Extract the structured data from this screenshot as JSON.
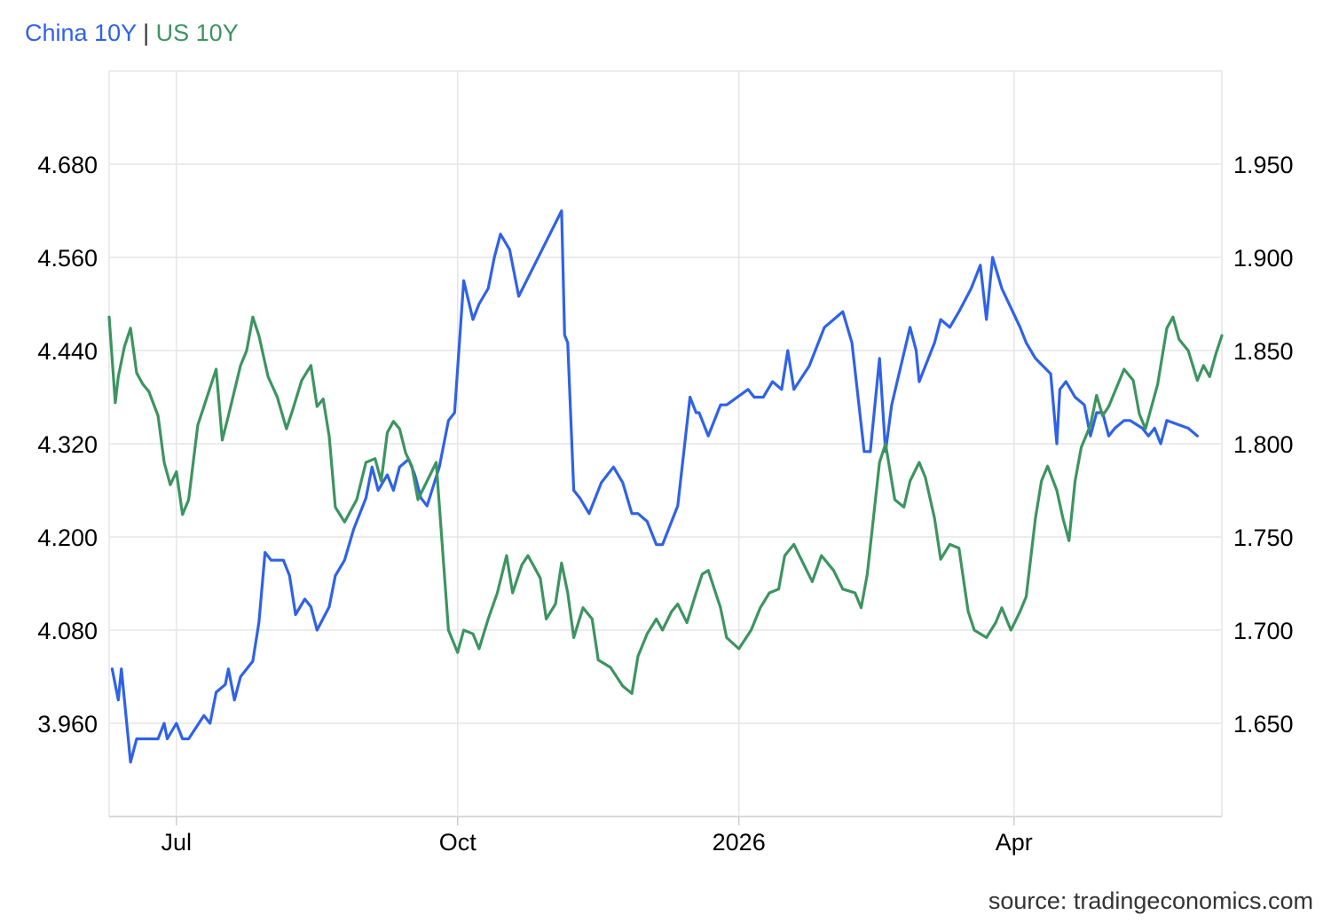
{
  "legend": {
    "separator": "|"
  },
  "source": "source: tradingeconomics.com",
  "colors": {
    "china": "#2f62e8",
    "us": "#3d9460",
    "grid": "#e6e6e6"
  },
  "chart_data": {
    "type": "line",
    "title": "",
    "x_ticks": [
      "Jul",
      "Oct",
      "2026",
      "Apr"
    ],
    "x_tick_dates": [
      "2025-07-01",
      "2025-10-01",
      "2026-01-01",
      "2026-04-01"
    ],
    "x_range": [
      "2025-06-09",
      "2026-06-08"
    ],
    "left_axis": {
      "series": "China 10Y",
      "ticks": [
        "4.680",
        "4.560",
        "4.440",
        "4.320",
        "4.200",
        "4.080",
        "3.960"
      ],
      "range": [
        3.84,
        4.8
      ]
    },
    "right_axis": {
      "series": "US 10Y",
      "ticks": [
        "1.950",
        "1.900",
        "1.850",
        "1.800",
        "1.750",
        "1.700",
        "1.650"
      ],
      "range": [
        1.6,
        2.0
      ]
    },
    "grid": true,
    "legend_position": "top-left",
    "series": [
      {
        "name": "China 10Y",
        "color": "#2f62e8",
        "axis": "left",
        "points": [
          [
            "2025-06-10",
            4.03
          ],
          [
            "2025-06-12",
            3.99
          ],
          [
            "2025-06-13",
            4.03
          ],
          [
            "2025-06-16",
            3.91
          ],
          [
            "2025-06-18",
            3.94
          ],
          [
            "2025-06-20",
            3.94
          ],
          [
            "2025-06-25",
            3.94
          ],
          [
            "2025-06-27",
            3.96
          ],
          [
            "2025-06-28",
            3.94
          ],
          [
            "2025-07-01",
            3.96
          ],
          [
            "2025-07-03",
            3.94
          ],
          [
            "2025-07-05",
            3.94
          ],
          [
            "2025-07-10",
            3.97
          ],
          [
            "2025-07-12",
            3.96
          ],
          [
            "2025-07-14",
            4.0
          ],
          [
            "2025-07-17",
            4.01
          ],
          [
            "2025-07-18",
            4.03
          ],
          [
            "2025-07-20",
            3.99
          ],
          [
            "2025-07-22",
            4.02
          ],
          [
            "2025-07-26",
            4.04
          ],
          [
            "2025-07-28",
            4.09
          ],
          [
            "2025-07-30",
            4.18
          ],
          [
            "2025-08-01",
            4.17
          ],
          [
            "2025-08-05",
            4.17
          ],
          [
            "2025-08-07",
            4.15
          ],
          [
            "2025-08-09",
            4.1
          ],
          [
            "2025-08-12",
            4.12
          ],
          [
            "2025-08-14",
            4.11
          ],
          [
            "2025-08-16",
            4.08
          ],
          [
            "2025-08-20",
            4.11
          ],
          [
            "2025-08-22",
            4.15
          ],
          [
            "2025-08-25",
            4.17
          ],
          [
            "2025-08-28",
            4.21
          ],
          [
            "2025-09-01",
            4.25
          ],
          [
            "2025-09-03",
            4.29
          ],
          [
            "2025-09-05",
            4.26
          ],
          [
            "2025-09-08",
            4.28
          ],
          [
            "2025-09-10",
            4.26
          ],
          [
            "2025-09-12",
            4.29
          ],
          [
            "2025-09-15",
            4.3
          ],
          [
            "2025-09-17",
            4.28
          ],
          [
            "2025-09-19",
            4.25
          ],
          [
            "2025-09-21",
            4.24
          ],
          [
            "2025-09-25",
            4.29
          ],
          [
            "2025-09-28",
            4.35
          ],
          [
            "2025-09-30",
            4.36
          ],
          [
            "2025-10-03",
            4.53
          ],
          [
            "2025-10-06",
            4.48
          ],
          [
            "2025-10-08",
            4.5
          ],
          [
            "2025-10-11",
            4.52
          ],
          [
            "2025-10-13",
            4.56
          ],
          [
            "2025-10-15",
            4.59
          ],
          [
            "2025-10-18",
            4.57
          ],
          [
            "2025-10-21",
            4.51
          ],
          [
            "2025-11-04",
            4.62
          ],
          [
            "2025-11-05",
            4.46
          ],
          [
            "2025-11-06",
            4.45
          ],
          [
            "2025-11-08",
            4.26
          ],
          [
            "2025-11-10",
            4.25
          ],
          [
            "2025-11-13",
            4.23
          ],
          [
            "2025-11-17",
            4.27
          ],
          [
            "2025-11-19",
            4.28
          ],
          [
            "2025-11-21",
            4.29
          ],
          [
            "2025-11-24",
            4.27
          ],
          [
            "2025-11-27",
            4.23
          ],
          [
            "2025-11-29",
            4.23
          ],
          [
            "2025-12-02",
            4.22
          ],
          [
            "2025-12-05",
            4.19
          ],
          [
            "2025-12-07",
            4.19
          ],
          [
            "2025-12-10",
            4.22
          ],
          [
            "2025-12-12",
            4.24
          ],
          [
            "2025-12-16",
            4.38
          ],
          [
            "2025-12-18",
            4.36
          ],
          [
            "2025-12-19",
            4.36
          ],
          [
            "2025-12-22",
            4.33
          ],
          [
            "2025-12-26",
            4.37
          ],
          [
            "2025-12-28",
            4.37
          ],
          [
            "2026-01-04",
            4.39
          ],
          [
            "2026-01-06",
            4.38
          ],
          [
            "2026-01-09",
            4.38
          ],
          [
            "2026-01-12",
            4.4
          ],
          [
            "2026-01-15",
            4.39
          ],
          [
            "2026-01-17",
            4.44
          ],
          [
            "2026-01-19",
            4.39
          ],
          [
            "2026-01-24",
            4.42
          ],
          [
            "2026-01-29",
            4.47
          ],
          [
            "2026-02-01",
            4.48
          ],
          [
            "2026-02-04",
            4.49
          ],
          [
            "2026-02-07",
            4.45
          ],
          [
            "2026-02-11",
            4.31
          ],
          [
            "2026-02-13",
            4.31
          ],
          [
            "2026-02-16",
            4.43
          ],
          [
            "2026-02-18",
            4.31
          ],
          [
            "2026-02-20",
            4.37
          ],
          [
            "2026-02-26",
            4.47
          ],
          [
            "2026-02-28",
            4.44
          ],
          [
            "2026-03-01",
            4.4
          ],
          [
            "2026-03-06",
            4.45
          ],
          [
            "2026-03-08",
            4.48
          ],
          [
            "2026-03-11",
            4.47
          ],
          [
            "2026-03-14",
            4.49
          ],
          [
            "2026-03-18",
            4.52
          ],
          [
            "2026-03-21",
            4.55
          ],
          [
            "2026-03-23",
            4.48
          ],
          [
            "2026-03-25",
            4.56
          ],
          [
            "2026-03-28",
            4.52
          ],
          [
            "2026-04-03",
            4.47
          ],
          [
            "2026-04-05",
            4.45
          ],
          [
            "2026-04-08",
            4.43
          ],
          [
            "2026-04-13",
            4.41
          ],
          [
            "2026-04-15",
            4.32
          ],
          [
            "2026-04-16",
            4.39
          ],
          [
            "2026-04-18",
            4.4
          ],
          [
            "2026-04-21",
            4.38
          ],
          [
            "2026-04-24",
            4.37
          ],
          [
            "2026-04-26",
            4.33
          ],
          [
            "2026-04-28",
            4.36
          ],
          [
            "2026-04-30",
            4.36
          ],
          [
            "2026-05-02",
            4.33
          ],
          [
            "2026-05-04",
            4.34
          ],
          [
            "2026-05-07",
            4.35
          ],
          [
            "2026-05-09",
            4.35
          ],
          [
            "2026-05-13",
            4.34
          ],
          [
            "2026-05-15",
            4.33
          ],
          [
            "2026-05-17",
            4.34
          ],
          [
            "2026-05-19",
            4.32
          ],
          [
            "2026-05-21",
            4.35
          ],
          [
            "2026-05-28",
            4.34
          ],
          [
            "2026-05-31",
            4.33
          ]
        ]
      },
      {
        "name": "US 10Y",
        "color": "#3d9460",
        "axis": "right",
        "points": [
          [
            "2025-06-09",
            1.868
          ],
          [
            "2025-06-11",
            1.822
          ],
          [
            "2025-06-12",
            1.836
          ],
          [
            "2025-06-14",
            1.852
          ],
          [
            "2025-06-16",
            1.862
          ],
          [
            "2025-06-18",
            1.838
          ],
          [
            "2025-06-20",
            1.832
          ],
          [
            "2025-06-22",
            1.828
          ],
          [
            "2025-06-25",
            1.815
          ],
          [
            "2025-06-27",
            1.79
          ],
          [
            "2025-06-29",
            1.778
          ],
          [
            "2025-07-01",
            1.785
          ],
          [
            "2025-07-03",
            1.762
          ],
          [
            "2025-07-05",
            1.77
          ],
          [
            "2025-07-08",
            1.81
          ],
          [
            "2025-07-12",
            1.83
          ],
          [
            "2025-07-14",
            1.84
          ],
          [
            "2025-07-16",
            1.802
          ],
          [
            "2025-07-18",
            1.815
          ],
          [
            "2025-07-22",
            1.842
          ],
          [
            "2025-07-24",
            1.85
          ],
          [
            "2025-07-26",
            1.868
          ],
          [
            "2025-07-28",
            1.858
          ],
          [
            "2025-07-31",
            1.836
          ],
          [
            "2025-08-03",
            1.825
          ],
          [
            "2025-08-06",
            1.808
          ],
          [
            "2025-08-08",
            1.818
          ],
          [
            "2025-08-11",
            1.834
          ],
          [
            "2025-08-14",
            1.842
          ],
          [
            "2025-08-16",
            1.82
          ],
          [
            "2025-08-18",
            1.824
          ],
          [
            "2025-08-20",
            1.804
          ],
          [
            "2025-08-22",
            1.766
          ],
          [
            "2025-08-25",
            1.758
          ],
          [
            "2025-08-29",
            1.77
          ],
          [
            "2025-09-01",
            1.79
          ],
          [
            "2025-09-04",
            1.792
          ],
          [
            "2025-09-06",
            1.78
          ],
          [
            "2025-09-08",
            1.806
          ],
          [
            "2025-09-10",
            1.812
          ],
          [
            "2025-09-12",
            1.808
          ],
          [
            "2025-09-14",
            1.795
          ],
          [
            "2025-09-16",
            1.788
          ],
          [
            "2025-09-18",
            1.77
          ],
          [
            "2025-09-21",
            1.78
          ],
          [
            "2025-09-24",
            1.79
          ],
          [
            "2025-09-28",
            1.7
          ],
          [
            "2025-10-01",
            1.688
          ],
          [
            "2025-10-03",
            1.7
          ],
          [
            "2025-10-06",
            1.698
          ],
          [
            "2025-10-08",
            1.69
          ],
          [
            "2025-10-11",
            1.706
          ],
          [
            "2025-10-14",
            1.72
          ],
          [
            "2025-10-17",
            1.74
          ],
          [
            "2025-10-19",
            1.72
          ],
          [
            "2025-10-22",
            1.735
          ],
          [
            "2025-10-24",
            1.74
          ],
          [
            "2025-10-28",
            1.728
          ],
          [
            "2025-10-30",
            1.706
          ],
          [
            "2025-11-02",
            1.714
          ],
          [
            "2025-11-04",
            1.736
          ],
          [
            "2025-11-06",
            1.72
          ],
          [
            "2025-11-08",
            1.696
          ],
          [
            "2025-11-11",
            1.712
          ],
          [
            "2025-11-14",
            1.706
          ],
          [
            "2025-11-16",
            1.684
          ],
          [
            "2025-11-20",
            1.68
          ],
          [
            "2025-11-24",
            1.67
          ],
          [
            "2025-11-27",
            1.666
          ],
          [
            "2025-11-29",
            1.686
          ],
          [
            "2025-12-02",
            1.698
          ],
          [
            "2025-12-05",
            1.706
          ],
          [
            "2025-12-07",
            1.7
          ],
          [
            "2025-12-10",
            1.71
          ],
          [
            "2025-12-12",
            1.714
          ],
          [
            "2025-12-15",
            1.704
          ],
          [
            "2025-12-18",
            1.72
          ],
          [
            "2025-12-20",
            1.73
          ],
          [
            "2025-12-22",
            1.732
          ],
          [
            "2025-12-26",
            1.712
          ],
          [
            "2025-12-28",
            1.696
          ],
          [
            "2026-01-01",
            1.69
          ],
          [
            "2026-01-05",
            1.7
          ],
          [
            "2026-01-08",
            1.712
          ],
          [
            "2026-01-11",
            1.72
          ],
          [
            "2026-01-14",
            1.722
          ],
          [
            "2026-01-16",
            1.74
          ],
          [
            "2026-01-19",
            1.746
          ],
          [
            "2026-01-22",
            1.736
          ],
          [
            "2026-01-25",
            1.726
          ],
          [
            "2026-01-28",
            1.74
          ],
          [
            "2026-02-01",
            1.732
          ],
          [
            "2026-02-04",
            1.722
          ],
          [
            "2026-02-08",
            1.72
          ],
          [
            "2026-02-10",
            1.712
          ],
          [
            "2026-02-12",
            1.73
          ],
          [
            "2026-02-14",
            1.76
          ],
          [
            "2026-02-16",
            1.79
          ],
          [
            "2026-02-18",
            1.8
          ],
          [
            "2026-02-21",
            1.77
          ],
          [
            "2026-02-24",
            1.766
          ],
          [
            "2026-02-26",
            1.78
          ],
          [
            "2026-03-01",
            1.79
          ],
          [
            "2026-03-03",
            1.782
          ],
          [
            "2026-03-06",
            1.76
          ],
          [
            "2026-03-08",
            1.738
          ],
          [
            "2026-03-11",
            1.746
          ],
          [
            "2026-03-14",
            1.744
          ],
          [
            "2026-03-17",
            1.71
          ],
          [
            "2026-03-19",
            1.7
          ],
          [
            "2026-03-23",
            1.696
          ],
          [
            "2026-03-26",
            1.704
          ],
          [
            "2026-03-28",
            1.712
          ],
          [
            "2026-03-31",
            1.7
          ],
          [
            "2026-04-03",
            1.71
          ],
          [
            "2026-04-05",
            1.718
          ],
          [
            "2026-04-08",
            1.76
          ],
          [
            "2026-04-10",
            1.78
          ],
          [
            "2026-04-12",
            1.788
          ],
          [
            "2026-04-15",
            1.775
          ],
          [
            "2026-04-17",
            1.76
          ],
          [
            "2026-04-19",
            1.748
          ],
          [
            "2026-04-21",
            1.78
          ],
          [
            "2026-04-23",
            1.798
          ],
          [
            "2026-04-26",
            1.81
          ],
          [
            "2026-04-28",
            1.826
          ],
          [
            "2026-04-30",
            1.815
          ],
          [
            "2026-05-02",
            1.82
          ],
          [
            "2026-05-05",
            1.832
          ],
          [
            "2026-05-07",
            1.84
          ],
          [
            "2026-05-10",
            1.834
          ],
          [
            "2026-05-12",
            1.816
          ],
          [
            "2026-05-14",
            1.808
          ],
          [
            "2026-05-16",
            1.82
          ],
          [
            "2026-05-18",
            1.832
          ],
          [
            "2026-05-21",
            1.862
          ],
          [
            "2026-05-23",
            1.868
          ],
          [
            "2026-05-25",
            1.856
          ],
          [
            "2026-05-28",
            1.85
          ],
          [
            "2026-05-31",
            1.834
          ],
          [
            "2026-06-02",
            1.842
          ],
          [
            "2026-06-04",
            1.836
          ],
          [
            "2026-06-06",
            1.848
          ],
          [
            "2026-06-08",
            1.858
          ]
        ]
      }
    ]
  }
}
